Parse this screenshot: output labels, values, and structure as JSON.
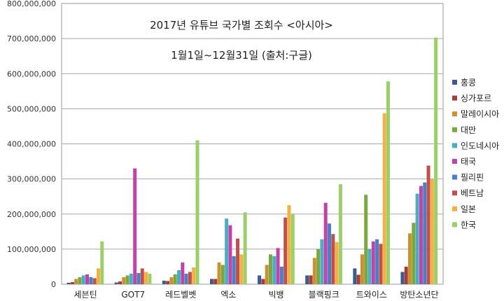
{
  "chart_data": {
    "type": "bar",
    "title": "2017년 유튜브 국가별 조회수 <아시아>",
    "subtitle": "1월1일~12월31일 (출처:구글)",
    "categories": [
      "세븐틴",
      "GOT7",
      "레드벨벳",
      "엑소",
      "빅뱅",
      "블랙핑크",
      "트와이스",
      "방탄소년단"
    ],
    "y_ticks": [
      "0",
      "100,000,000",
      "200,000,000",
      "300,000,000",
      "400,000,000",
      "500,000,000",
      "600,000,000",
      "700,000,000",
      "800,000,000"
    ],
    "ylim": [
      0,
      800000000
    ],
    "grid": true,
    "legend_position": "right",
    "series": [
      {
        "name": "홍콩",
        "color": "#3b5a8f",
        "values": [
          4000000,
          5000000,
          10000000,
          15000000,
          25000000,
          25000000,
          45000000,
          35000000
        ]
      },
      {
        "name": "싱가포르",
        "color": "#a63c3a",
        "values": [
          6000000,
          8000000,
          9000000,
          15000000,
          15000000,
          25000000,
          27000000,
          50000000
        ]
      },
      {
        "name": "말레이시아",
        "color": "#c9922e",
        "values": [
          15000000,
          20000000,
          20000000,
          62000000,
          55000000,
          75000000,
          85000000,
          145000000
        ]
      },
      {
        "name": "대만",
        "color": "#7ba83e",
        "values": [
          20000000,
          25000000,
          28000000,
          55000000,
          85000000,
          100000000,
          255000000,
          175000000
        ]
      },
      {
        "name": "인도네시아",
        "color": "#4bacc6",
        "values": [
          25000000,
          30000000,
          40000000,
          187000000,
          80000000,
          128000000,
          100000000,
          258000000
        ]
      },
      {
        "name": "태국",
        "color": "#c143a8",
        "values": [
          28000000,
          330000000,
          62000000,
          168000000,
          103000000,
          232000000,
          122000000,
          280000000
        ]
      },
      {
        "name": "필리핀",
        "color": "#4a80c8",
        "values": [
          20000000,
          32000000,
          30000000,
          80000000,
          50000000,
          173000000,
          128000000,
          290000000
        ]
      },
      {
        "name": "베트남",
        "color": "#c0504d",
        "values": [
          17000000,
          45000000,
          35000000,
          130000000,
          190000000,
          143000000,
          115000000,
          338000000
        ]
      },
      {
        "name": "일본",
        "color": "#f2b142",
        "values": [
          45000000,
          35000000,
          48000000,
          85000000,
          225000000,
          120000000,
          487000000,
          300000000
        ]
      },
      {
        "name": "한국",
        "color": "#9bcf68",
        "values": [
          122000000,
          30000000,
          410000000,
          205000000,
          200000000,
          285000000,
          578000000,
          703000000
        ]
      }
    ]
  }
}
